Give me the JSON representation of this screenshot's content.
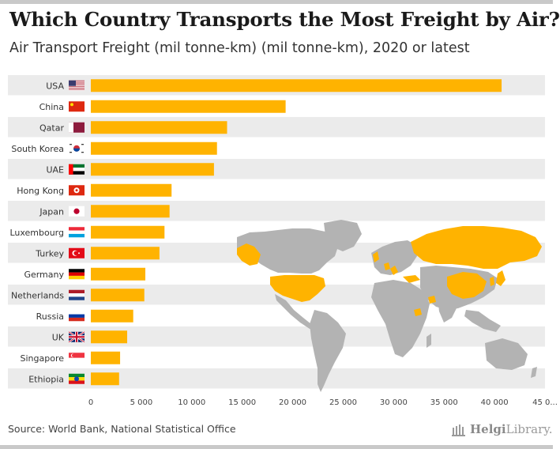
{
  "header": {
    "title": "Which Country Transports the Most Freight by Air?",
    "subtitle": "Air Transport Freight (mil tonne-km) (mil tonne-km), 2020 or latest"
  },
  "footer": {
    "source": "Source: World Bank, National Statistical Office",
    "logo_text_1": "Helgi",
    "logo_text_2": "Library."
  },
  "colors": {
    "bar": "#ffb300",
    "band": "#ebebeb",
    "map_land": "#b3b3b3",
    "map_highlight": "#ffb300"
  },
  "chart_data": {
    "type": "bar",
    "orientation": "horizontal",
    "categories": [
      "USA",
      "China",
      "Qatar",
      "South Korea",
      "UAE",
      "Hong Kong",
      "Japan",
      "Luxembourg",
      "Turkey",
      "Germany",
      "Netherlands",
      "Russia",
      "UK",
      "Singapore",
      "Ethiopia"
    ],
    "values": [
      40700,
      19300,
      13500,
      12500,
      12200,
      8000,
      7800,
      7300,
      6800,
      5400,
      5300,
      4200,
      3600,
      2900,
      2800
    ],
    "flags": [
      "usa-flag-icon",
      "china-flag-icon",
      "qatar-flag-icon",
      "south-korea-flag-icon",
      "uae-flag-icon",
      "hong-kong-flag-icon",
      "japan-flag-icon",
      "luxembourg-flag-icon",
      "turkey-flag-icon",
      "germany-flag-icon",
      "netherlands-flag-icon",
      "russia-flag-icon",
      "uk-flag-icon",
      "singapore-flag-icon",
      "ethiopia-flag-icon"
    ],
    "xlim": [
      0,
      45000
    ],
    "xticks": [
      0,
      5000,
      10000,
      15000,
      20000,
      25000,
      30000,
      35000,
      40000,
      45000
    ],
    "xtick_labels": [
      "0",
      "5 000",
      "10 000",
      "15 000",
      "20 000",
      "25 000",
      "30 000",
      "35 000",
      "40 000",
      "45 0..."
    ],
    "grid": false,
    "xlabel": "",
    "ylabel": ""
  }
}
